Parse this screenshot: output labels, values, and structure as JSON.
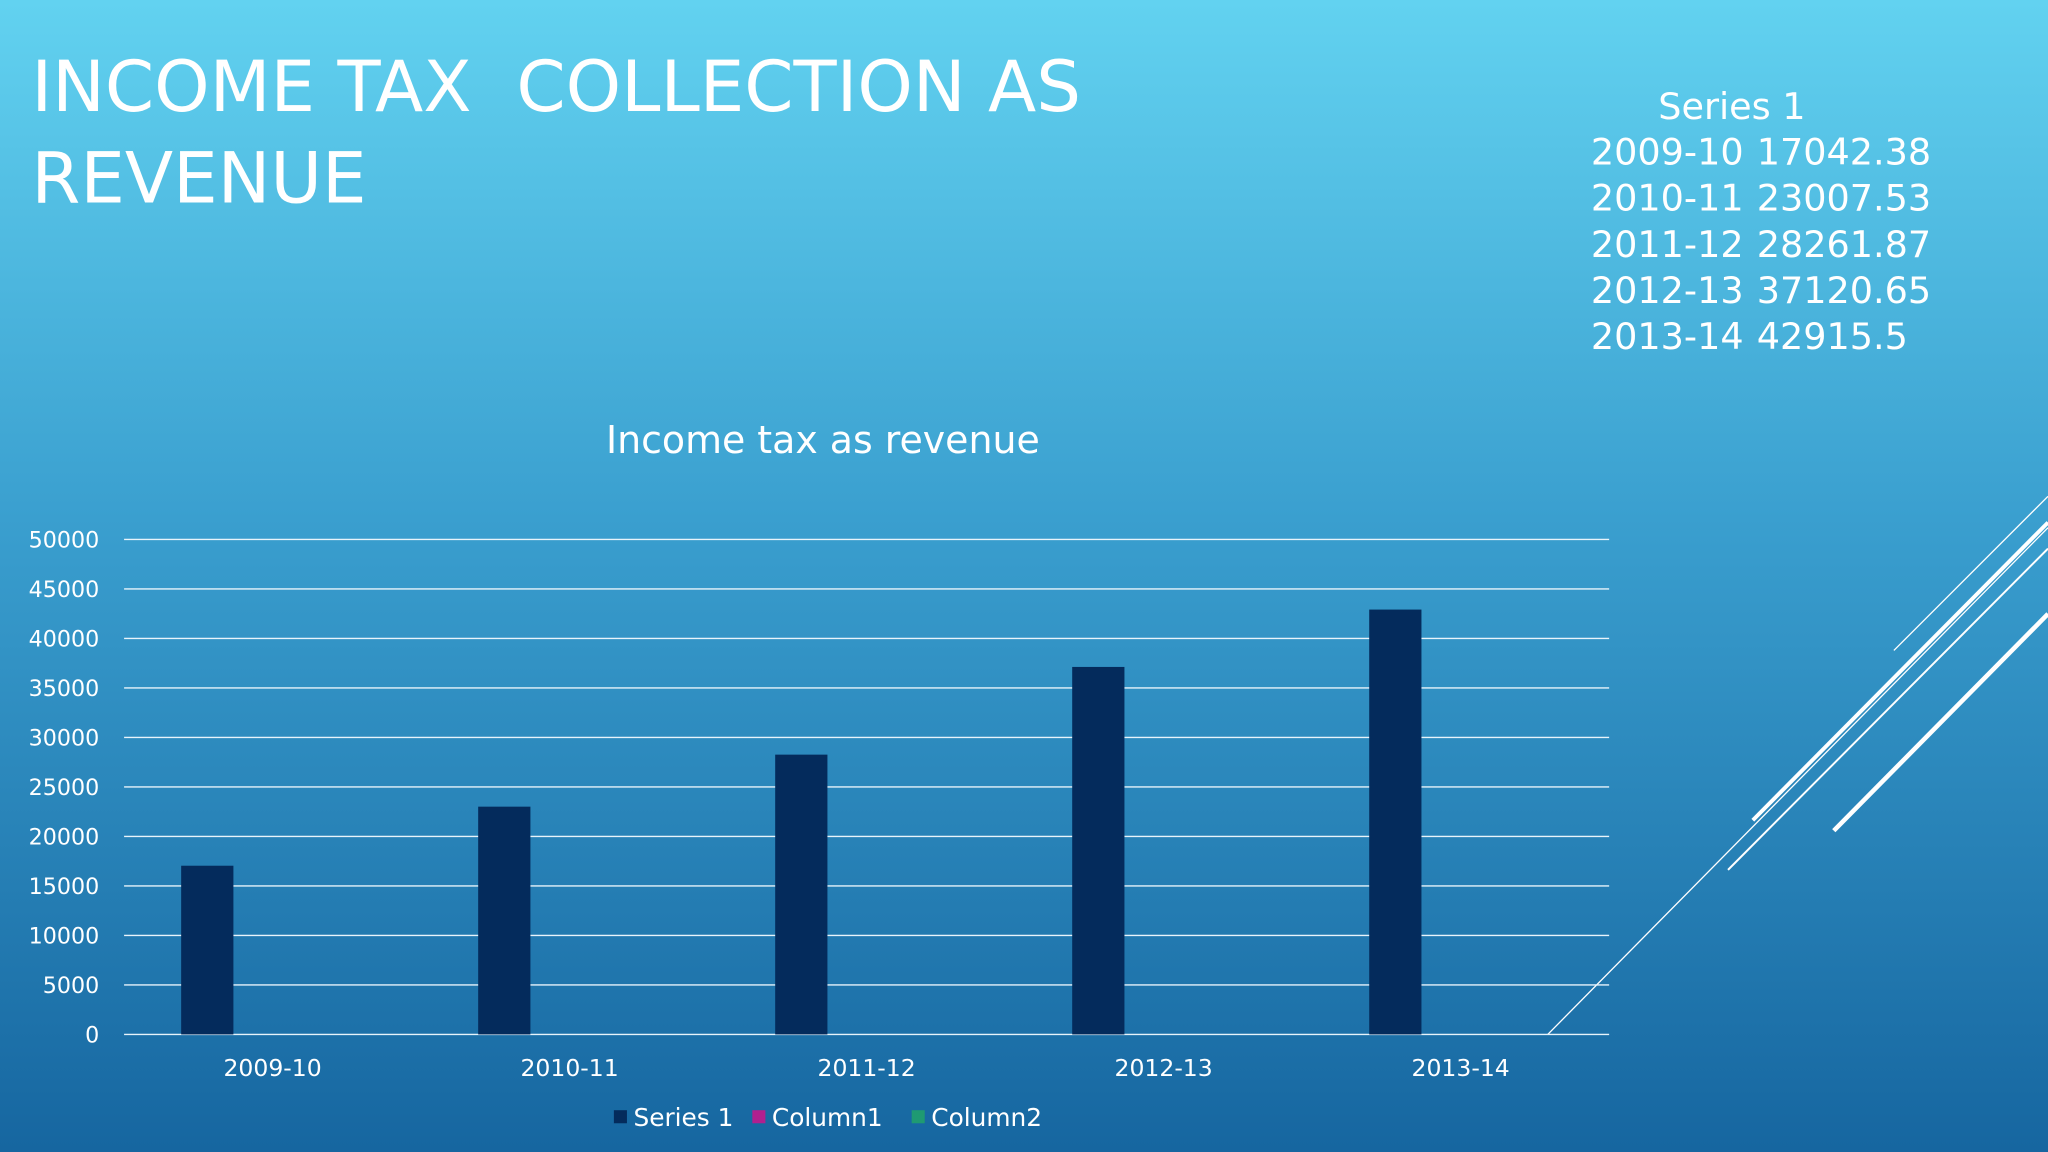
{
  "slide_title": [
    "INCOME TAX  COLLECTION AS",
    "REVENUE"
  ],
  "chart_data": {
    "type": "bar",
    "title": "Income tax as revenue",
    "categories": [
      "2009-10",
      "2010-11",
      "2011-12",
      "2012-13",
      "2013-14"
    ],
    "series": [
      {
        "name": "Series 1",
        "color": "#042b5c",
        "values": [
          17042.38,
          23007.53,
          28261.87,
          37120.65,
          42915.5
        ]
      },
      {
        "name": "Column1",
        "color": "#b0208f",
        "values": [
          null,
          null,
          null,
          null,
          null
        ]
      },
      {
        "name": "Column2",
        "color": "#1f9a72",
        "values": [
          null,
          null,
          null,
          null,
          null
        ]
      }
    ],
    "ylim": [
      0,
      50000
    ],
    "yticks": [
      0,
      5000,
      10000,
      15000,
      20000,
      25000,
      30000,
      35000,
      40000,
      45000,
      50000
    ],
    "grid": true,
    "legend": "bottom"
  }
}
